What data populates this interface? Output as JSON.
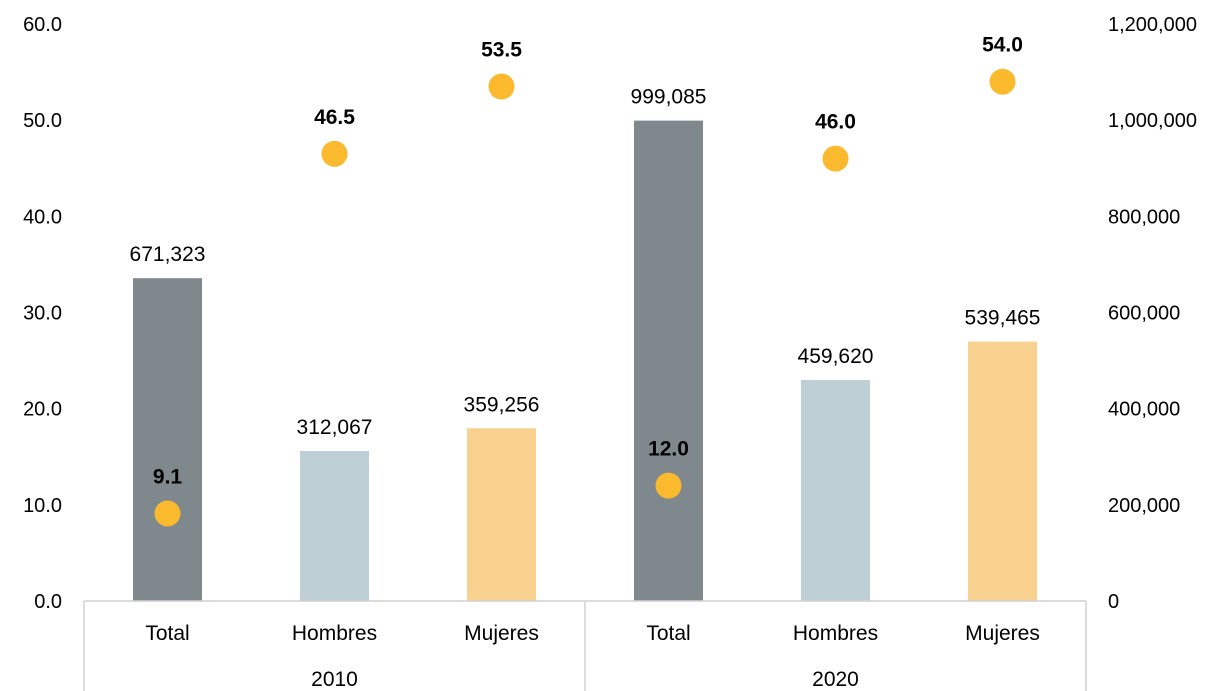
{
  "chart_data": {
    "type": "bar",
    "groups": [
      {
        "label": "2010",
        "categories": [
          "Total",
          "Hombres",
          "Mujeres"
        ]
      },
      {
        "label": "2020",
        "categories": [
          "Total",
          "Hombres",
          "Mujeres"
        ]
      }
    ],
    "bar_series": {
      "axis": "right",
      "values": [
        671323,
        312067,
        359256,
        999085,
        459620,
        539465
      ],
      "labels": [
        "671,323",
        "312,067",
        "359,256",
        "999,085",
        "459,620",
        "539,465"
      ],
      "colors": [
        "#7f888d",
        "#bfcfd6",
        "#f9d18f",
        "#7f888d",
        "#bfcfd6",
        "#f9d18f"
      ]
    },
    "point_series": {
      "axis": "left",
      "values": [
        9.1,
        46.5,
        53.5,
        12.0,
        46.0,
        54.0
      ],
      "labels": [
        "9.1",
        "46.5",
        "53.5",
        "12.0",
        "46.0",
        "54.0"
      ],
      "color": "#fbb92d"
    },
    "left_axis": {
      "ylim": [
        0,
        60
      ],
      "ticks": [
        "0.0",
        "10.0",
        "20.0",
        "30.0",
        "40.0",
        "50.0",
        "60.0"
      ]
    },
    "right_axis": {
      "ylim": [
        0,
        1200000
      ],
      "ticks": [
        "0",
        "200,000",
        "400,000",
        "600,000",
        "800,000",
        "1,000,000",
        "1,200,000"
      ]
    },
    "grid": false,
    "legend": "none"
  }
}
